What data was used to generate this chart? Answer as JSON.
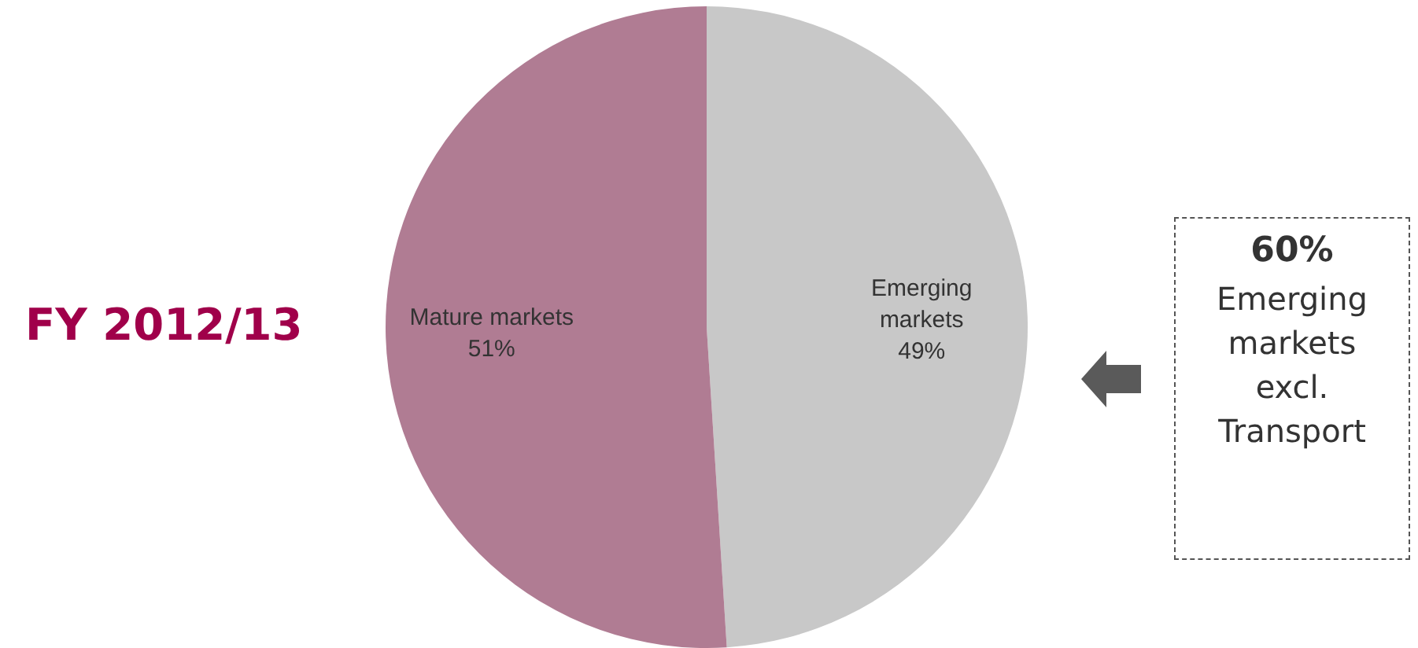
{
  "chart_data": {
    "type": "pie",
    "title": "FY 2012/13",
    "categories": [
      "Emerging markets",
      "Mature markets"
    ],
    "values": [
      49,
      51
    ],
    "colors": [
      "#c8c8c8",
      "#b07c93"
    ],
    "value_labels": [
      "49%",
      "51%"
    ],
    "legend": false,
    "annotations": [
      "60%",
      "Emerging markets excl. Transport"
    ]
  }
}
